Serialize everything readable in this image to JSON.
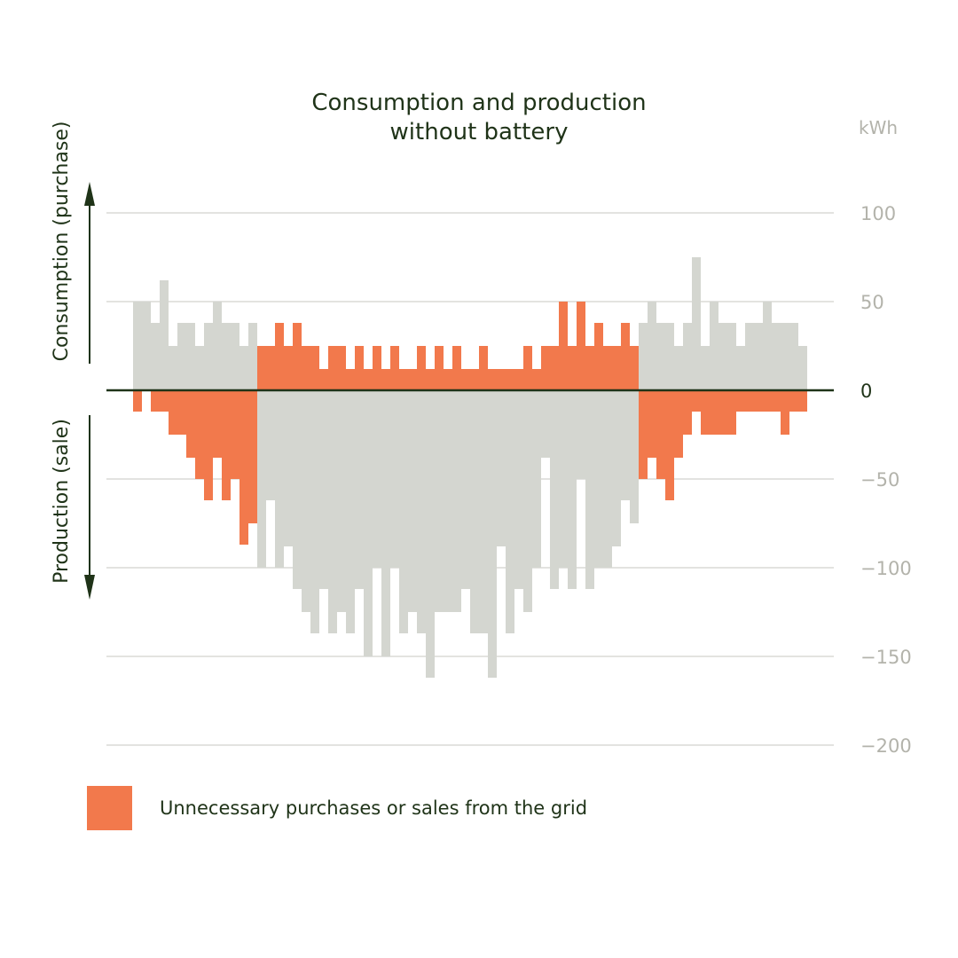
{
  "colors": {
    "gray": "#d4d6d0",
    "orange": "#f2794c",
    "axis": "#1f3318",
    "grid": "#dadad6",
    "muted": "#b3b3ab"
  },
  "legend": {
    "label": "Unnecessary purchases or sales from the grid"
  },
  "chart_data": {
    "type": "bar",
    "title": "Consumption and production without battery",
    "title_lines": [
      "Consumption and production",
      "without battery"
    ],
    "unit": "kWh",
    "ylabel_top": "Consumption (purchase)",
    "ylabel_bottom": "Production (sale)",
    "ylim": [
      -200,
      100
    ],
    "yticks": [
      100,
      50,
      0,
      -50,
      -100,
      -150,
      -200
    ],
    "ytick_labels": [
      "100",
      "50",
      "0",
      "−50",
      "−100",
      "−150",
      "−200"
    ],
    "bar_count": 76,
    "series": [
      {
        "name": "Consumption (purchase)",
        "values": [
          50,
          50,
          38,
          62,
          25,
          38,
          38,
          25,
          38,
          50,
          38,
          38,
          25,
          38,
          25,
          25,
          38,
          25,
          38,
          25,
          25,
          12,
          25,
          25,
          12,
          25,
          12,
          25,
          12,
          25,
          12,
          12,
          25,
          12,
          25,
          12,
          25,
          12,
          12,
          25,
          12,
          12,
          12,
          12,
          25,
          12,
          25,
          25,
          50,
          25,
          50,
          25,
          38,
          25,
          25,
          38,
          25,
          38,
          50,
          38,
          38,
          25,
          38,
          75,
          25,
          50,
          38,
          38,
          25,
          38,
          38,
          50,
          38,
          38,
          38,
          25
        ]
      },
      {
        "name": "Production (sale)",
        "values": [
          -12,
          0,
          -12,
          -12,
          -25,
          -25,
          -38,
          -50,
          -62,
          -38,
          -62,
          -50,
          -87,
          -75,
          -100,
          -62,
          -100,
          -88,
          -112,
          -125,
          -137,
          -112,
          -137,
          -125,
          -137,
          -112,
          -150,
          -100,
          -150,
          -100,
          -137,
          -125,
          -137,
          -162,
          -125,
          -125,
          -125,
          -112,
          -137,
          -137,
          -162,
          -88,
          -137,
          -112,
          -125,
          -100,
          -38,
          -112,
          -100,
          -112,
          -50,
          -112,
          -100,
          -100,
          -88,
          -62,
          -75,
          -50,
          -38,
          -50,
          -62,
          -38,
          -25,
          -12,
          -25,
          -25,
          -25,
          -25,
          -12,
          -12,
          -12,
          -12,
          -12,
          -25,
          -12,
          -12
        ]
      }
    ],
    "unnecessary_purchase_indices": [
      14,
      15,
      16,
      17,
      18,
      19,
      20,
      21,
      22,
      23,
      24,
      25,
      26,
      27,
      28,
      29,
      30,
      31,
      32,
      33,
      34,
      35,
      36,
      37,
      38,
      39,
      40,
      41,
      42,
      43,
      44,
      45,
      46,
      47,
      48,
      49,
      50,
      51,
      52,
      53,
      54,
      55,
      56
    ],
    "unnecessary_sale_indices": [
      0,
      1,
      2,
      3,
      4,
      5,
      6,
      7,
      8,
      9,
      10,
      11,
      12,
      13,
      57,
      58,
      59,
      60,
      61,
      62,
      63,
      64,
      65,
      66,
      67,
      68,
      69,
      70,
      71,
      72,
      73,
      74,
      75
    ]
  }
}
